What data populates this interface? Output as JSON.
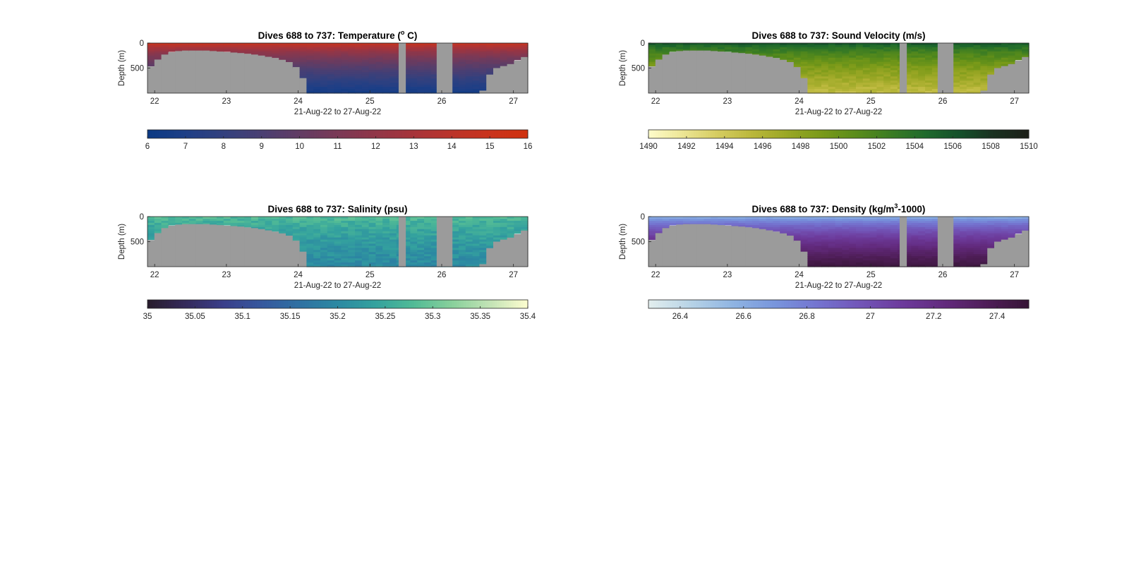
{
  "chart_data": [
    {
      "type": "heatmap",
      "title_prefix": "Dives 688 to 737: Temperature (",
      "title_sup": "o",
      "title_suffix": " C)",
      "xlabel": "21-Aug-22 to 27-Aug-22",
      "ylabel": "Depth (m)",
      "x_ticks": [
        "22",
        "23",
        "24",
        "25",
        "26",
        "27"
      ],
      "xlim": [
        21.9,
        27.2
      ],
      "y_ticks": [
        "0",
        "500"
      ],
      "ylim": [
        0,
        1000
      ],
      "y_reversed": true,
      "no_data_color": "#9b9b9b",
      "bathymetry_depth_m": [
        470,
        330,
        230,
        180,
        160,
        150,
        150,
        150,
        150,
        160,
        170,
        180,
        190,
        200,
        215,
        230,
        250,
        275,
        300,
        335,
        380,
        480,
        700,
        1000,
        1000,
        1000,
        1000,
        1000,
        1000,
        1000,
        1000,
        1000,
        1000,
        1000,
        1000,
        1000,
        1000,
        1000,
        1000,
        1000,
        1000,
        1000,
        1000,
        1000,
        1000,
        1000,
        1000,
        1000,
        950,
        630,
        500,
        460,
        420,
        350,
        280
      ],
      "no_data_gaps_x": [
        [
          25.4,
          25.5
        ],
        [
          25.93,
          26.15
        ]
      ],
      "colorbar": {
        "ticks": [
          "6",
          "7",
          "8",
          "9",
          "10",
          "11",
          "12",
          "13",
          "14",
          "15",
          "16"
        ],
        "range": [
          6,
          16
        ],
        "colormap": [
          "#0b3a84",
          "#1e3f86",
          "#33407e",
          "#4a3f72",
          "#623c64",
          "#7a3956",
          "#913648",
          "#a7343a",
          "#bb342a",
          "#c9331c",
          "#d0320f"
        ]
      },
      "surface_value": 15.5,
      "bottom_value": 6.5,
      "noise": 0.2
    },
    {
      "type": "heatmap",
      "title_prefix": "Dives 688 to 737: Sound Velocity (m/s)",
      "title_sup": "",
      "title_suffix": "",
      "xlabel": "21-Aug-22 to 27-Aug-22",
      "ylabel": "Depth (m)",
      "x_ticks": [
        "22",
        "23",
        "24",
        "25",
        "26",
        "27"
      ],
      "xlim": [
        21.9,
        27.2
      ],
      "y_ticks": [
        "0",
        "500"
      ],
      "ylim": [
        0,
        1000
      ],
      "y_reversed": true,
      "no_data_color": "#9b9b9b",
      "bathymetry_depth_m": [
        470,
        330,
        230,
        180,
        160,
        150,
        150,
        150,
        150,
        160,
        170,
        180,
        190,
        200,
        215,
        230,
        250,
        275,
        300,
        335,
        380,
        480,
        700,
        1000,
        1000,
        1000,
        1000,
        1000,
        1000,
        1000,
        1000,
        1000,
        1000,
        1000,
        1000,
        1000,
        1000,
        1000,
        1000,
        1000,
        1000,
        1000,
        1000,
        1000,
        1000,
        1000,
        1000,
        1000,
        950,
        630,
        500,
        460,
        420,
        350,
        280
      ],
      "no_data_gaps_x": [
        [
          25.4,
          25.5
        ],
        [
          25.93,
          26.15
        ]
      ],
      "colorbar": {
        "ticks": [
          "1490",
          "1492",
          "1494",
          "1496",
          "1498",
          "1500",
          "1502",
          "1504",
          "1506",
          "1508",
          "1510"
        ],
        "range": [
          1490,
          1510
        ],
        "colormap": [
          "#fefccb",
          "#ece594",
          "#d5cc60",
          "#bab73b",
          "#9aa725",
          "#7a9a19",
          "#5a8c1a",
          "#3b7c23",
          "#1f6a2c",
          "#14502a",
          "#1a3020",
          "#1c1f18"
        ]
      },
      "surface_value": 1507,
      "bottom_value": 1495,
      "noise": 0.7
    },
    {
      "type": "heatmap",
      "title_prefix": "Dives 688 to 737: Salinity (psu)",
      "title_sup": "",
      "title_suffix": "",
      "xlabel": "21-Aug-22 to 27-Aug-22",
      "ylabel": "Depth (m)",
      "x_ticks": [
        "22",
        "23",
        "24",
        "25",
        "26",
        "27"
      ],
      "xlim": [
        21.9,
        27.2
      ],
      "y_ticks": [
        "0",
        "500"
      ],
      "ylim": [
        0,
        1000
      ],
      "y_reversed": true,
      "no_data_color": "#9b9b9b",
      "bathymetry_depth_m": [
        470,
        330,
        230,
        180,
        160,
        150,
        150,
        150,
        150,
        160,
        170,
        180,
        190,
        200,
        215,
        230,
        250,
        275,
        300,
        335,
        380,
        480,
        700,
        1000,
        1000,
        1000,
        1000,
        1000,
        1000,
        1000,
        1000,
        1000,
        1000,
        1000,
        1000,
        1000,
        1000,
        1000,
        1000,
        1000,
        1000,
        1000,
        1000,
        1000,
        1000,
        1000,
        1000,
        1000,
        950,
        630,
        500,
        460,
        420,
        350,
        280
      ],
      "no_data_gaps_x": [
        [
          25.4,
          25.5
        ],
        [
          25.93,
          26.15
        ]
      ],
      "colorbar": {
        "ticks": [
          "35",
          "35.05",
          "35.1",
          "35.15",
          "35.2",
          "35.25",
          "35.3",
          "35.35",
          "35.4"
        ],
        "range": [
          35,
          35.4
        ],
        "colormap": [
          "#281c2b",
          "#352a5b",
          "#3a3f8a",
          "#36589e",
          "#2f71a2",
          "#2c89a2",
          "#34a29e",
          "#52bb96",
          "#88d09b",
          "#c2e3b5",
          "#fdfdcf"
        ]
      },
      "surface_value": 35.29,
      "bottom_value": 35.2,
      "noise": 0.02
    },
    {
      "type": "heatmap",
      "title_prefix": "Dives 688 to 737: Density (kg/m",
      "title_sup": "3",
      "title_suffix": "-1000)",
      "xlabel": "21-Aug-22 to 27-Aug-22",
      "ylabel": "Depth (m)",
      "x_ticks": [
        "22",
        "23",
        "24",
        "25",
        "26",
        "27"
      ],
      "xlim": [
        21.9,
        27.2
      ],
      "y_ticks": [
        "0",
        "500"
      ],
      "ylim": [
        0,
        1000
      ],
      "y_reversed": true,
      "no_data_color": "#9b9b9b",
      "bathymetry_depth_m": [
        470,
        330,
        230,
        180,
        160,
        150,
        150,
        150,
        150,
        160,
        170,
        180,
        190,
        200,
        215,
        230,
        250,
        275,
        300,
        335,
        380,
        480,
        700,
        1000,
        1000,
        1000,
        1000,
        1000,
        1000,
        1000,
        1000,
        1000,
        1000,
        1000,
        1000,
        1000,
        1000,
        1000,
        1000,
        1000,
        1000,
        1000,
        1000,
        1000,
        1000,
        1000,
        1000,
        1000,
        950,
        630,
        500,
        460,
        420,
        350,
        280
      ],
      "no_data_gaps_x": [
        [
          25.4,
          25.5
        ],
        [
          25.93,
          26.15
        ]
      ],
      "colorbar": {
        "ticks": [
          "26.4",
          "26.6",
          "26.8",
          "27",
          "27.2",
          "27.4"
        ],
        "range": [
          26.3,
          27.5
        ],
        "colormap": [
          "#e3eeee",
          "#b7d3e6",
          "#8fb4e2",
          "#7895dc",
          "#7474d0",
          "#7256b8",
          "#6d3b9c",
          "#622a7d",
          "#4f1e58",
          "#371536"
        ]
      },
      "surface_value": 26.5,
      "bottom_value": 27.47,
      "noise": 0.02
    }
  ]
}
